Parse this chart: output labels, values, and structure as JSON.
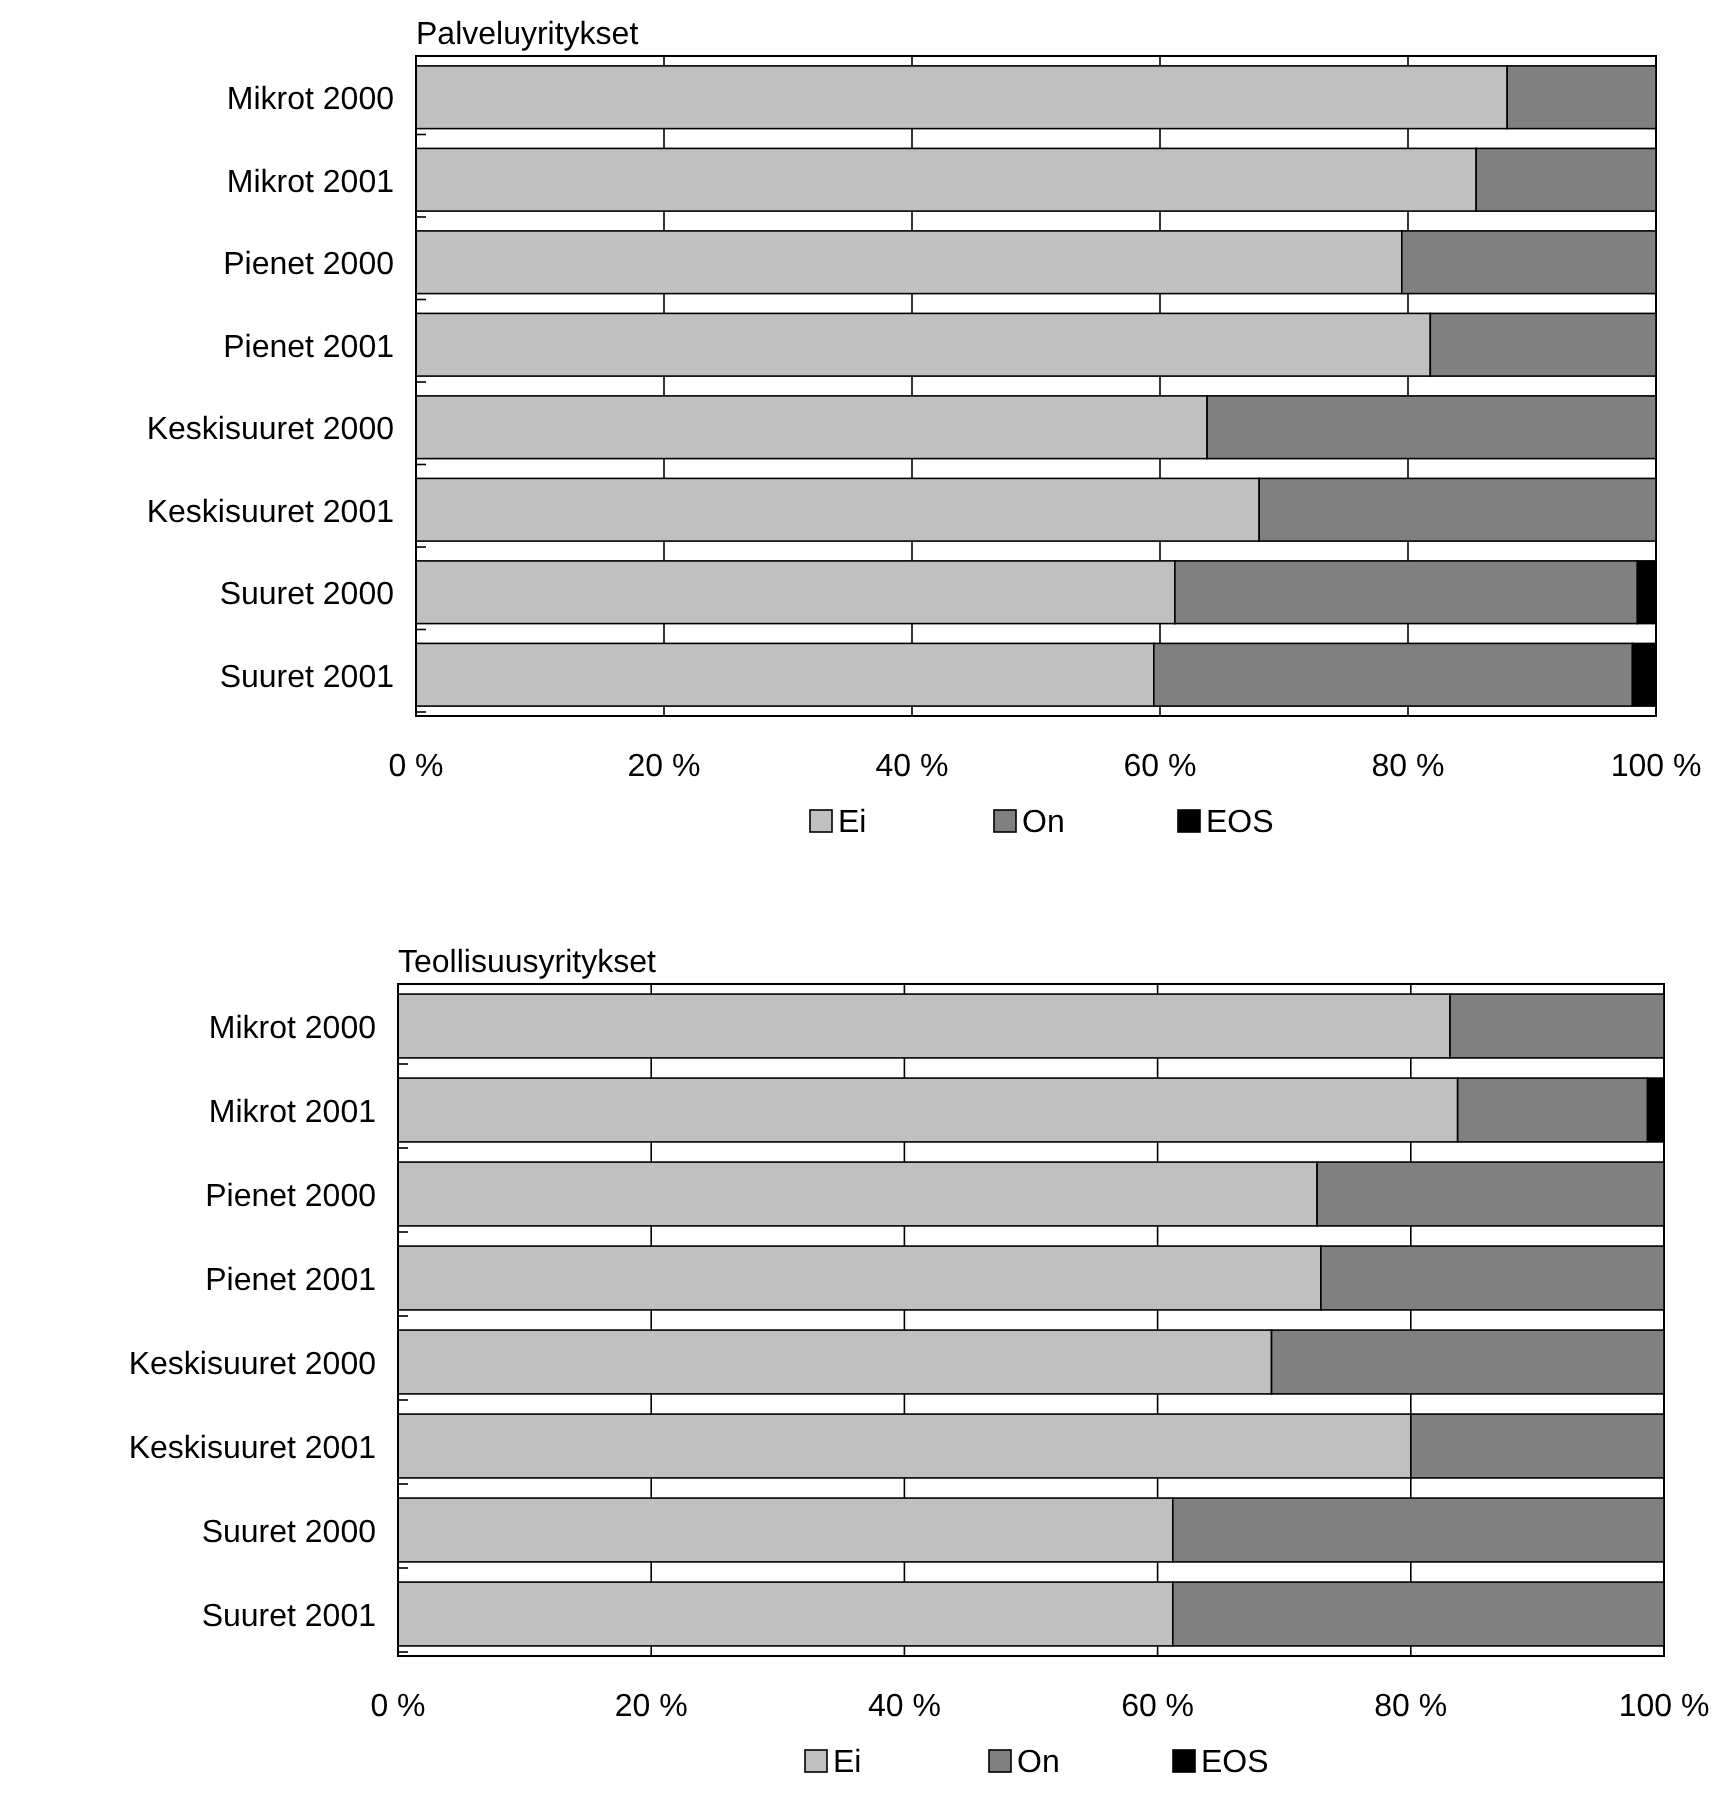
{
  "chart_data": [
    {
      "type": "bar",
      "title": "Palveluyritykset",
      "orientation": "horizontal",
      "stacked": true,
      "categories": [
        "Mikrot 2000",
        "Mikrot 2001",
        "Pienet 2000",
        "Pienet 2001",
        "Keskisuuret 2000",
        "Keskisuuret 2001",
        "Suuret 2000",
        "Suuret 2001"
      ],
      "series": [
        {
          "name": "Ei",
          "color": "#c0c0c0",
          "values": [
            88,
            85.5,
            79.5,
            81.8,
            63.8,
            68,
            61.2,
            59.5
          ]
        },
        {
          "name": "On",
          "color": "#808080",
          "values": [
            12,
            14.5,
            20.5,
            18.2,
            36.2,
            32,
            37.3,
            38.6
          ]
        },
        {
          "name": "EOS",
          "color": "#000000",
          "values": [
            0,
            0,
            0,
            0,
            0,
            0,
            1.5,
            1.9
          ]
        }
      ],
      "xlim": [
        0,
        100
      ],
      "xticks": [
        {
          "value": 0,
          "label": "0 %"
        },
        {
          "value": 20,
          "label": "20 %"
        },
        {
          "value": 40,
          "label": "40 %"
        },
        {
          "value": 60,
          "label": "60 %"
        },
        {
          "value": 80,
          "label": "80 %"
        },
        {
          "value": 100,
          "label": "100 %"
        }
      ],
      "grid": "x",
      "legend": "bottom"
    },
    {
      "type": "bar",
      "title": "Teollisuusyritykset",
      "orientation": "horizontal",
      "stacked": true,
      "categories": [
        "Mikrot 2000",
        "Mikrot 2001",
        "Pienet 2000",
        "Pienet 2001",
        "Keskisuuret 2000",
        "Keskisuuret 2001",
        "Suuret 2000",
        "Suuret 2001"
      ],
      "series": [
        {
          "name": "Ei",
          "color": "#c0c0c0",
          "values": [
            83.1,
            83.7,
            72.6,
            72.9,
            69,
            80,
            61.2,
            61.2
          ]
        },
        {
          "name": "On",
          "color": "#808080",
          "values": [
            16.9,
            15,
            27.4,
            27.1,
            31,
            20,
            38.8,
            38.8
          ]
        },
        {
          "name": "EOS",
          "color": "#000000",
          "values": [
            0,
            1.3,
            0,
            0,
            0,
            0,
            0,
            0
          ]
        }
      ],
      "xlim": [
        0,
        100
      ],
      "xticks": [
        {
          "value": 0,
          "label": "0 %"
        },
        {
          "value": 20,
          "label": "20 %"
        },
        {
          "value": 40,
          "label": "40 %"
        },
        {
          "value": 60,
          "label": "60 %"
        },
        {
          "value": 80,
          "label": "80 %"
        },
        {
          "value": 100,
          "label": "100 %"
        }
      ],
      "grid": "x",
      "legend": "bottom"
    }
  ]
}
